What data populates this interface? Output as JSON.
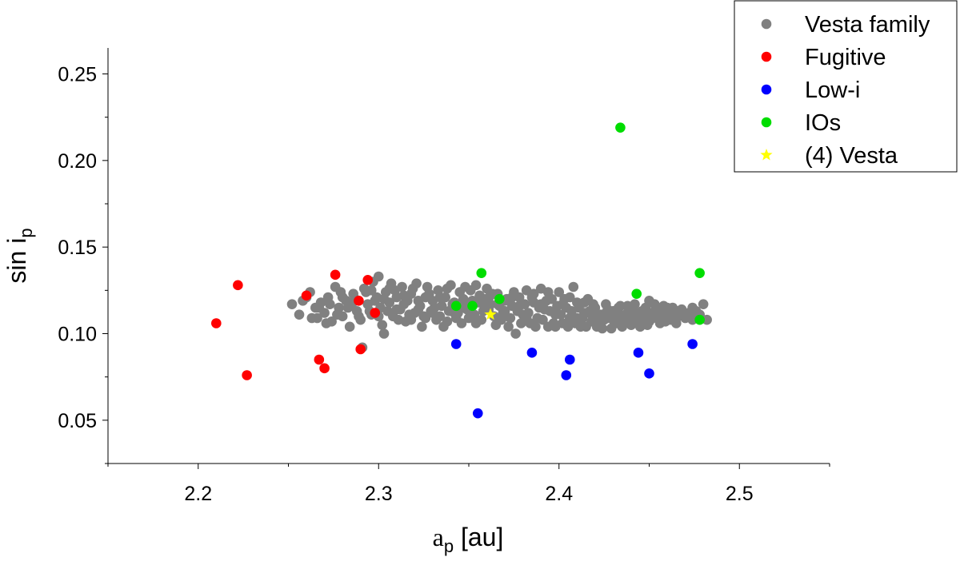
{
  "chart_data": {
    "type": "scatter",
    "title": "",
    "xlabel": {
      "base": "a",
      "sub": "p",
      "rest": " [au]"
    },
    "ylabel": {
      "base": "sin i",
      "sub": "p"
    },
    "xlim": [
      2.15,
      2.55
    ],
    "ylim": [
      0.025,
      0.265
    ],
    "x_ticks": [
      2.2,
      2.3,
      2.4,
      2.5
    ],
    "x_tick_labels": [
      "2.2",
      "2.3",
      "2.4",
      "2.5"
    ],
    "x_minor_ticks": [
      2.15,
      2.25,
      2.35,
      2.45,
      2.55
    ],
    "y_ticks": [
      0.05,
      0.1,
      0.15,
      0.2,
      0.25
    ],
    "y_tick_labels": [
      "0.05",
      "0.10",
      "0.15",
      "0.20",
      "0.25"
    ],
    "y_minor_ticks": [
      0.025,
      0.075,
      0.125,
      0.175,
      0.225
    ],
    "grid": false,
    "legend_position": "top-right",
    "series": [
      {
        "name": "Vesta family",
        "color": "#808080",
        "marker": "circle",
        "points": [
          [
            2.252,
            0.117
          ],
          [
            2.256,
            0.111
          ],
          [
            2.258,
            0.119
          ],
          [
            2.262,
            0.124
          ],
          [
            2.265,
            0.115
          ],
          [
            2.266,
            0.109
          ],
          [
            2.268,
            0.118
          ],
          [
            2.27,
            0.112
          ],
          [
            2.272,
            0.121
          ],
          [
            2.274,
            0.107
          ],
          [
            2.276,
            0.127
          ],
          [
            2.278,
            0.115
          ],
          [
            2.28,
            0.11
          ],
          [
            2.282,
            0.119
          ],
          [
            2.284,
            0.104
          ],
          [
            2.286,
            0.123
          ],
          [
            2.288,
            0.113
          ],
          [
            2.29,
            0.108
          ],
          [
            2.291,
            0.092
          ],
          [
            2.292,
            0.126
          ],
          [
            2.294,
            0.117
          ],
          [
            2.296,
            0.111
          ],
          [
            2.297,
            0.13
          ],
          [
            2.299,
            0.121
          ],
          [
            2.3,
            0.133
          ],
          [
            2.301,
            0.115
          ],
          [
            2.302,
            0.105
          ],
          [
            2.303,
            0.1
          ],
          [
            2.304,
            0.124
          ],
          [
            2.306,
            0.118
          ],
          [
            2.307,
            0.129
          ],
          [
            2.308,
            0.11
          ],
          [
            2.31,
            0.121
          ],
          [
            2.312,
            0.114
          ],
          [
            2.313,
            0.127
          ],
          [
            2.315,
            0.107
          ],
          [
            2.316,
            0.119
          ],
          [
            2.318,
            0.123
          ],
          [
            2.32,
            0.112
          ],
          [
            2.321,
            0.129
          ],
          [
            2.323,
            0.116
          ],
          [
            2.324,
            0.104
          ],
          [
            2.326,
            0.121
          ],
          [
            2.327,
            0.127
          ],
          [
            2.329,
            0.113
          ],
          [
            2.33,
            0.119
          ],
          [
            2.332,
            0.108
          ],
          [
            2.333,
            0.125
          ],
          [
            2.335,
            0.116
          ],
          [
            2.336,
            0.104
          ],
          [
            2.337,
            0.121
          ],
          [
            2.339,
            0.113
          ],
          [
            2.34,
            0.128
          ],
          [
            2.342,
            0.118
          ],
          [
            2.343,
            0.109
          ],
          [
            2.345,
            0.124
          ],
          [
            2.346,
            0.115
          ],
          [
            2.348,
            0.127
          ],
          [
            2.35,
            0.109
          ],
          [
            2.352,
            0.119
          ],
          [
            2.354,
            0.106
          ],
          [
            2.356,
            0.122
          ],
          [
            2.358,
            0.113
          ],
          [
            2.36,
            0.126
          ],
          [
            2.362,
            0.117
          ],
          [
            2.364,
            0.11
          ],
          [
            2.366,
            0.123
          ],
          [
            2.368,
            0.108
          ],
          [
            2.37,
            0.119
          ],
          [
            2.372,
            0.104
          ],
          [
            2.374,
            0.116
          ],
          [
            2.376,
            0.1
          ],
          [
            2.378,
            0.121
          ],
          [
            2.38,
            0.111
          ],
          [
            2.382,
            0.125
          ],
          [
            2.384,
            0.106
          ],
          [
            2.386,
            0.118
          ],
          [
            2.388,
            0.109
          ],
          [
            2.39,
            0.126
          ],
          [
            2.392,
            0.114
          ],
          [
            2.394,
            0.104
          ],
          [
            2.396,
            0.12
          ],
          [
            2.398,
            0.111
          ],
          [
            2.4,
            0.124
          ],
          [
            2.402,
            0.106
          ],
          [
            2.404,
            0.115
          ],
          [
            2.406,
            0.109
          ],
          [
            2.408,
            0.127
          ],
          [
            2.41,
            0.118
          ],
          [
            2.412,
            0.104
          ],
          [
            2.414,
            0.112
          ],
          [
            2.416,
            0.12
          ],
          [
            2.418,
            0.107
          ],
          [
            2.42,
            0.115
          ],
          [
            2.422,
            0.11
          ],
          [
            2.424,
            0.103
          ],
          [
            2.426,
            0.117
          ],
          [
            2.428,
            0.109
          ],
          [
            2.43,
            0.113
          ],
          [
            2.432,
            0.106
          ],
          [
            2.434,
            0.116
          ],
          [
            2.436,
            0.108
          ],
          [
            2.438,
            0.112
          ],
          [
            2.44,
            0.105
          ],
          [
            2.442,
            0.117
          ],
          [
            2.444,
            0.11
          ],
          [
            2.446,
            0.107
          ],
          [
            2.448,
            0.115
          ],
          [
            2.45,
            0.119
          ],
          [
            2.452,
            0.109
          ],
          [
            2.454,
            0.113
          ],
          [
            2.456,
            0.106
          ],
          [
            2.458,
            0.111
          ],
          [
            2.46,
            0.115
          ],
          [
            2.462,
            0.108
          ],
          [
            2.464,
            0.112
          ],
          [
            2.466,
            0.11
          ],
          [
            2.468,
            0.114
          ],
          [
            2.47,
            0.109
          ],
          [
            2.472,
            0.112
          ],
          [
            2.474,
            0.108
          ],
          [
            2.476,
            0.113
          ],
          [
            2.478,
            0.11
          ],
          [
            2.48,
            0.117
          ],
          [
            2.482,
            0.108
          ],
          [
            2.28,
            0.121
          ],
          [
            2.285,
            0.116
          ],
          [
            2.289,
            0.11
          ],
          [
            2.293,
            0.124
          ],
          [
            2.295,
            0.113
          ],
          [
            2.298,
            0.119
          ],
          [
            2.305,
            0.113
          ],
          [
            2.309,
            0.125
          ],
          [
            2.311,
            0.108
          ],
          [
            2.314,
            0.117
          ],
          [
            2.317,
            0.111
          ],
          [
            2.319,
            0.126
          ],
          [
            2.322,
            0.119
          ],
          [
            2.325,
            0.11
          ],
          [
            2.328,
            0.123
          ],
          [
            2.331,
            0.115
          ],
          [
            2.334,
            0.121
          ],
          [
            2.338,
            0.107
          ],
          [
            2.341,
            0.117
          ],
          [
            2.344,
            0.112
          ],
          [
            2.347,
            0.12
          ],
          [
            2.349,
            0.114
          ],
          [
            2.351,
            0.125
          ],
          [
            2.353,
            0.111
          ],
          [
            2.355,
            0.118
          ],
          [
            2.357,
            0.108
          ],
          [
            2.359,
            0.12
          ],
          [
            2.361,
            0.114
          ],
          [
            2.363,
            0.123
          ],
          [
            2.365,
            0.105
          ],
          [
            2.367,
            0.116
          ],
          [
            2.369,
            0.112
          ],
          [
            2.371,
            0.12
          ],
          [
            2.373,
            0.109
          ],
          [
            2.375,
            0.124
          ],
          [
            2.377,
            0.113
          ],
          [
            2.379,
            0.106
          ],
          [
            2.381,
            0.117
          ],
          [
            2.383,
            0.112
          ],
          [
            2.385,
            0.121
          ],
          [
            2.387,
            0.104
          ],
          [
            2.389,
            0.115
          ],
          [
            2.391,
            0.108
          ],
          [
            2.393,
            0.119
          ],
          [
            2.395,
            0.113
          ],
          [
            2.397,
            0.106
          ],
          [
            2.399,
            0.116
          ],
          [
            2.401,
            0.111
          ],
          [
            2.403,
            0.12
          ],
          [
            2.405,
            0.104
          ],
          [
            2.407,
            0.113
          ],
          [
            2.409,
            0.106
          ],
          [
            2.411,
            0.115
          ],
          [
            2.413,
            0.109
          ],
          [
            2.415,
            0.104
          ],
          [
            2.417,
            0.113
          ],
          [
            2.419,
            0.117
          ],
          [
            2.421,
            0.104
          ],
          [
            2.423,
            0.111
          ],
          [
            2.425,
            0.108
          ],
          [
            2.427,
            0.114
          ],
          [
            2.429,
            0.103
          ],
          [
            2.431,
            0.111
          ],
          [
            2.433,
            0.115
          ],
          [
            2.435,
            0.104
          ],
          [
            2.437,
            0.11
          ],
          [
            2.439,
            0.114
          ],
          [
            2.441,
            0.109
          ],
          [
            2.443,
            0.112
          ],
          [
            2.445,
            0.104
          ],
          [
            2.447,
            0.111
          ],
          [
            2.449,
            0.105
          ],
          [
            2.451,
            0.112
          ],
          [
            2.453,
            0.117
          ],
          [
            2.455,
            0.109
          ],
          [
            2.457,
            0.114
          ],
          [
            2.459,
            0.107
          ],
          [
            2.461,
            0.112
          ],
          [
            2.463,
            0.115
          ],
          [
            2.465,
            0.106
          ],
          [
            2.26,
            0.121
          ],
          [
            2.263,
            0.109
          ],
          [
            2.267,
            0.115
          ],
          [
            2.271,
            0.106
          ],
          [
            2.273,
            0.117
          ],
          [
            2.277,
            0.111
          ],
          [
            2.279,
            0.124
          ],
          [
            2.283,
            0.115
          ],
          [
            2.287,
            0.12
          ],
          [
            2.296,
            0.125
          ],
          [
            2.3,
            0.11
          ],
          [
            2.303,
            0.12
          ],
          [
            2.306,
            0.126
          ],
          [
            2.31,
            0.114
          ],
          [
            2.314,
            0.122
          ],
          [
            2.318,
            0.108
          ],
          [
            2.322,
            0.114
          ],
          [
            2.326,
            0.109
          ],
          [
            2.33,
            0.112
          ],
          [
            2.334,
            0.11
          ],
          [
            2.338,
            0.126
          ],
          [
            2.342,
            0.112
          ],
          [
            2.346,
            0.106
          ],
          [
            2.35,
            0.116
          ],
          [
            2.354,
            0.128
          ],
          [
            2.358,
            0.117
          ],
          [
            2.362,
            0.122
          ],
          [
            2.366,
            0.117
          ],
          [
            2.37,
            0.113
          ],
          [
            2.374,
            0.121
          ],
          [
            2.378,
            0.116
          ],
          [
            2.382,
            0.109
          ],
          [
            2.386,
            0.123
          ],
          [
            2.39,
            0.117
          ],
          [
            2.394,
            0.124
          ],
          [
            2.398,
            0.104
          ],
          [
            2.402,
            0.117
          ],
          [
            2.406,
            0.121
          ],
          [
            2.41,
            0.109
          ],
          [
            2.414,
            0.118
          ],
          [
            2.418,
            0.111
          ],
          [
            2.422,
            0.106
          ],
          [
            2.426,
            0.112
          ],
          [
            2.43,
            0.108
          ],
          [
            2.434,
            0.111
          ],
          [
            2.438,
            0.116
          ],
          [
            2.442,
            0.108
          ],
          [
            2.446,
            0.113
          ],
          [
            2.45,
            0.107
          ],
          [
            2.454,
            0.11
          ],
          [
            2.458,
            0.116
          ],
          [
            2.462,
            0.112
          ],
          [
            2.466,
            0.113
          ],
          [
            2.47,
            0.11
          ],
          [
            2.474,
            0.115
          ],
          [
            2.478,
            0.111
          ]
        ]
      },
      {
        "name": "Fugitive",
        "color": "#ff0000",
        "marker": "circle",
        "points": [
          [
            2.21,
            0.106
          ],
          [
            2.222,
            0.128
          ],
          [
            2.227,
            0.076
          ],
          [
            2.26,
            0.122
          ],
          [
            2.267,
            0.085
          ],
          [
            2.27,
            0.08
          ],
          [
            2.276,
            0.134
          ],
          [
            2.289,
            0.119
          ],
          [
            2.29,
            0.091
          ],
          [
            2.294,
            0.131
          ],
          [
            2.298,
            0.112
          ]
        ]
      },
      {
        "name": "Low-i",
        "color": "#0000ff",
        "marker": "circle",
        "points": [
          [
            2.343,
            0.094
          ],
          [
            2.355,
            0.054
          ],
          [
            2.385,
            0.089
          ],
          [
            2.404,
            0.076
          ],
          [
            2.406,
            0.085
          ],
          [
            2.444,
            0.089
          ],
          [
            2.45,
            0.077
          ],
          [
            2.474,
            0.094
          ]
        ]
      },
      {
        "name": "IOs",
        "color": "#00dd00",
        "marker": "circle",
        "points": [
          [
            2.343,
            0.116
          ],
          [
            2.352,
            0.116
          ],
          [
            2.357,
            0.135
          ],
          [
            2.367,
            0.12
          ],
          [
            2.434,
            0.219
          ],
          [
            2.443,
            0.123
          ],
          [
            2.478,
            0.135
          ],
          [
            2.478,
            0.108
          ]
        ]
      },
      {
        "name": "(4) Vesta",
        "color": "#ffff00",
        "marker": "star",
        "points": [
          [
            2.362,
            0.111
          ]
        ]
      }
    ]
  }
}
